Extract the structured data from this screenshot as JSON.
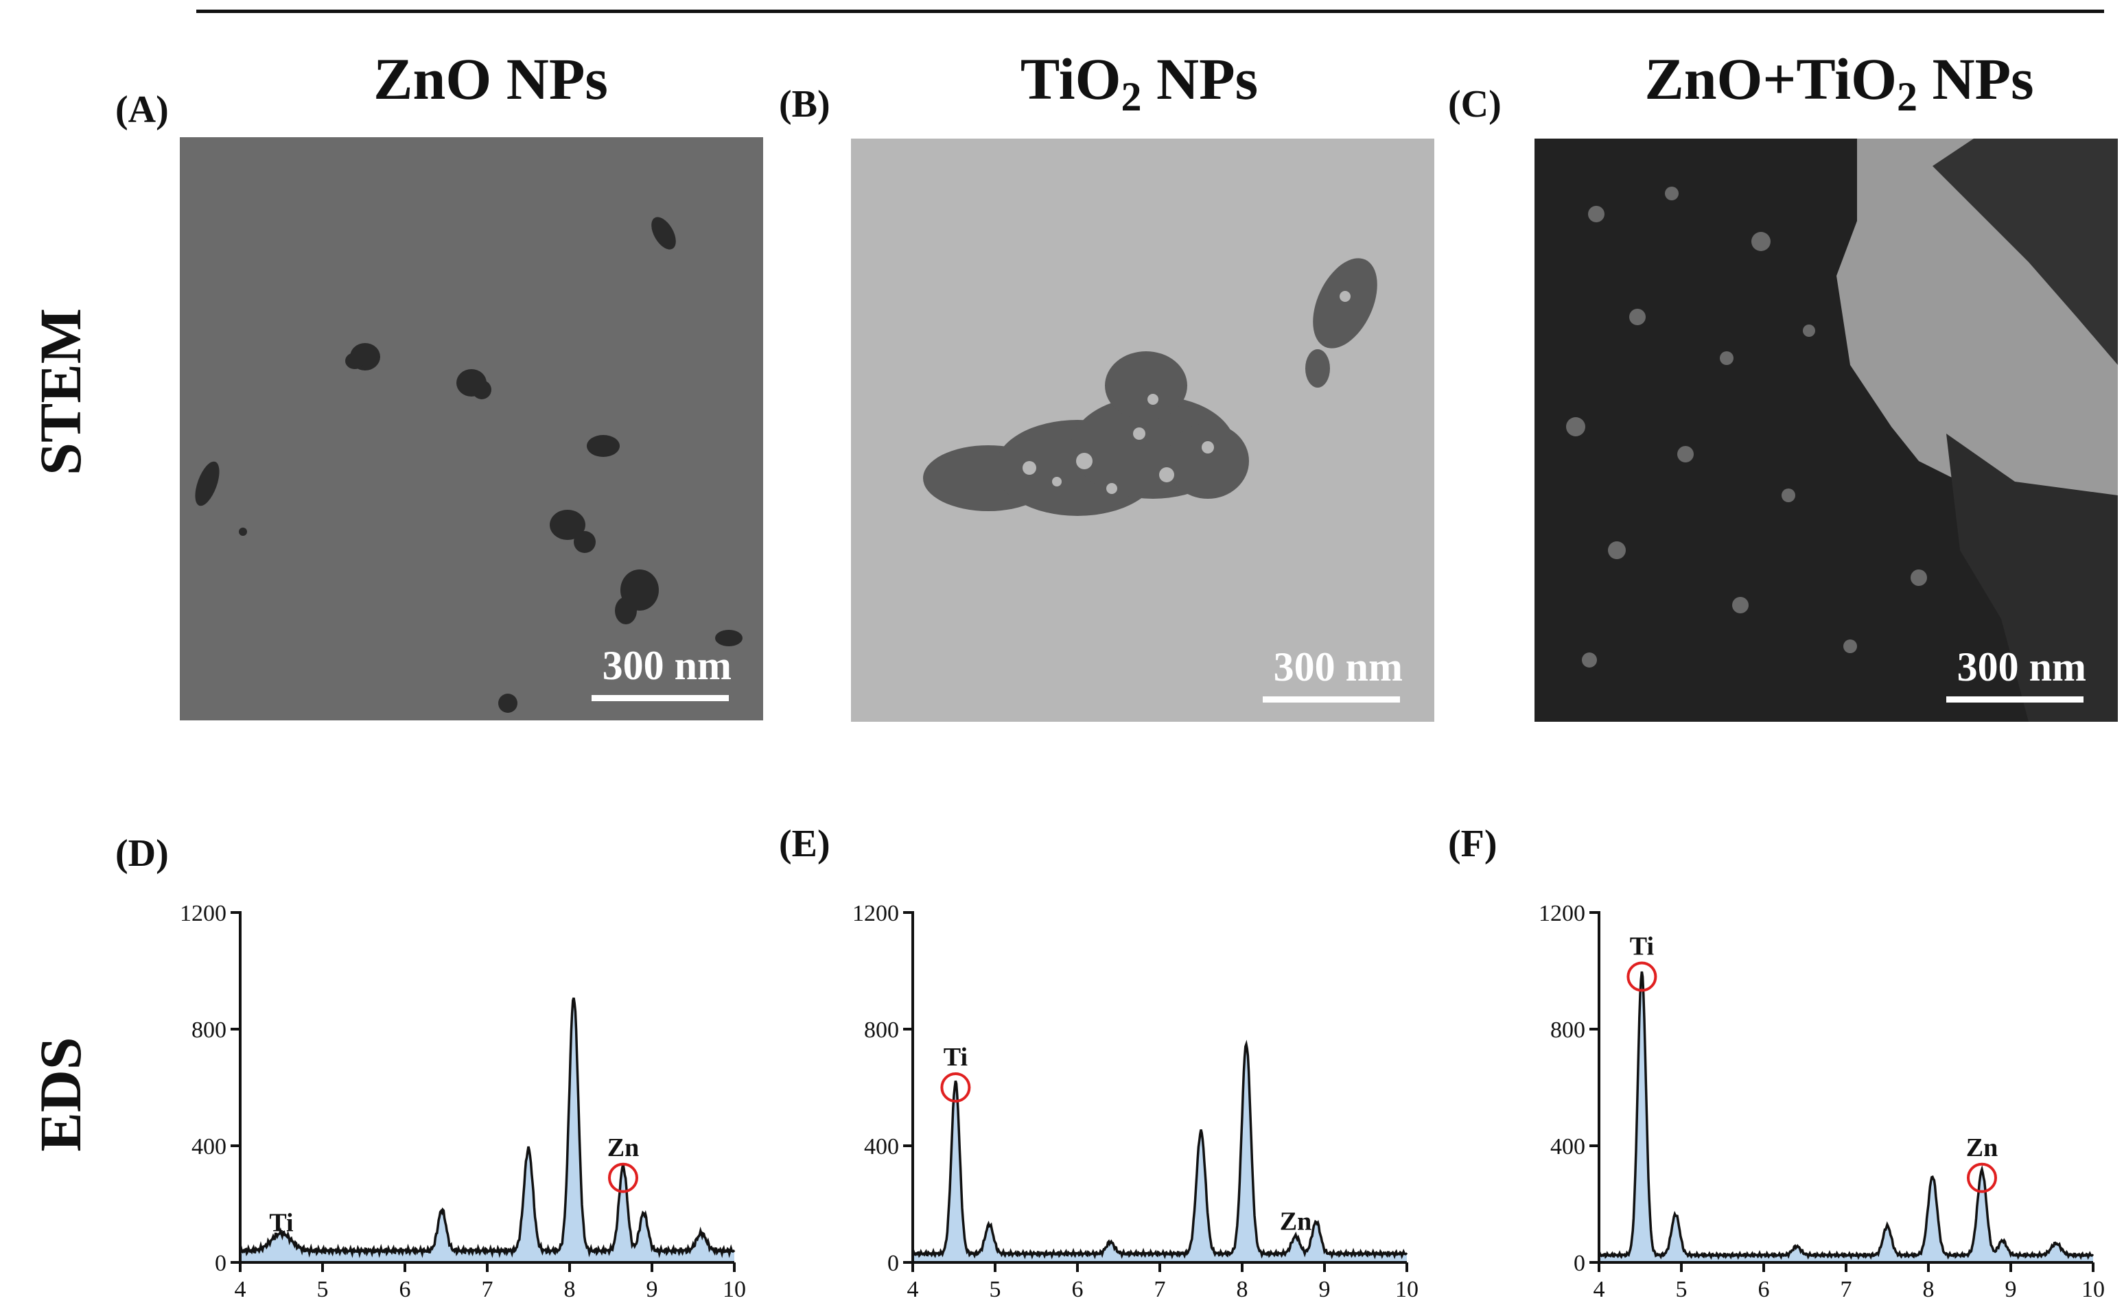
{
  "columns": [
    {
      "title": "ZnO NPs",
      "title_sub": ""
    },
    {
      "title": "TiO",
      "title_sub": "2",
      "title_suffix": " NPs"
    },
    {
      "title": "ZnO+TiO",
      "title_sub": "2",
      "title_suffix": " NPs"
    }
  ],
  "row_labels": {
    "stem": "STEM",
    "eds": "EDS"
  },
  "stem_panels": [
    {
      "label": "(A)",
      "scalebar": "300 nm",
      "background": "#6b6b6b"
    },
    {
      "label": "(B)",
      "scalebar": "300 nm",
      "background": "#b7b7b7"
    },
    {
      "label": "(C)",
      "scalebar": "300 nm",
      "background": "#9a9a9a"
    }
  ],
  "eds_panel_labels": [
    "(D)",
    "(E)",
    "(F)"
  ],
  "colors": {
    "fill": "#bcd6ee",
    "line": "#111111",
    "circle": "#e02020"
  },
  "chart_data": [
    {
      "type": "line",
      "panel": "(D)",
      "x_range": [
        4,
        10
      ],
      "ylim": [
        0,
        1200
      ],
      "xticks": [
        4,
        5,
        6,
        7,
        8,
        9,
        10
      ],
      "yticks": [
        0,
        400,
        800,
        1200
      ],
      "baseline": 40,
      "peaks": [
        {
          "x": 4.5,
          "y": 60,
          "w": 0.12
        },
        {
          "x": 6.45,
          "y": 140,
          "w": 0.05
        },
        {
          "x": 7.5,
          "y": 350,
          "w": 0.055
        },
        {
          "x": 8.05,
          "y": 870,
          "w": 0.055
        },
        {
          "x": 8.65,
          "y": 290,
          "w": 0.05
        },
        {
          "x": 8.9,
          "y": 130,
          "w": 0.05
        },
        {
          "x": 9.6,
          "y": 60,
          "w": 0.06
        }
      ],
      "annotations": [
        {
          "text": "Ti",
          "x": 4.5,
          "y": 55,
          "circle": false
        },
        {
          "text": "Zn",
          "x": 8.65,
          "y": 290,
          "circle": true
        }
      ]
    },
    {
      "type": "line",
      "panel": "(E)",
      "x_range": [
        4,
        10
      ],
      "ylim": [
        0,
        1200
      ],
      "xticks": [
        4,
        5,
        6,
        7,
        8,
        9,
        10
      ],
      "yticks": [
        0,
        400,
        800,
        1200
      ],
      "baseline": 30,
      "peaks": [
        {
          "x": 4.52,
          "y": 590,
          "w": 0.05
        },
        {
          "x": 4.93,
          "y": 100,
          "w": 0.05
        },
        {
          "x": 6.4,
          "y": 40,
          "w": 0.05
        },
        {
          "x": 7.5,
          "y": 420,
          "w": 0.055
        },
        {
          "x": 8.05,
          "y": 720,
          "w": 0.055
        },
        {
          "x": 8.65,
          "y": 60,
          "w": 0.05
        },
        {
          "x": 8.9,
          "y": 110,
          "w": 0.05
        }
      ],
      "annotations": [
        {
          "text": "Ti",
          "x": 4.52,
          "y": 600,
          "circle": true
        },
        {
          "text": "Zn",
          "x": 8.65,
          "y": 60,
          "circle": false
        }
      ]
    },
    {
      "type": "line",
      "panel": "(F)",
      "x_range": [
        4,
        10
      ],
      "ylim": [
        0,
        1200
      ],
      "xticks": [
        4,
        5,
        6,
        7,
        8,
        9,
        10
      ],
      "yticks": [
        0,
        400,
        800,
        1200
      ],
      "baseline": 25,
      "peaks": [
        {
          "x": 4.52,
          "y": 970,
          "w": 0.05
        },
        {
          "x": 4.93,
          "y": 140,
          "w": 0.05
        },
        {
          "x": 6.4,
          "y": 30,
          "w": 0.05
        },
        {
          "x": 7.5,
          "y": 100,
          "w": 0.05
        },
        {
          "x": 8.05,
          "y": 270,
          "w": 0.055
        },
        {
          "x": 8.65,
          "y": 290,
          "w": 0.055
        },
        {
          "x": 8.9,
          "y": 50,
          "w": 0.05
        },
        {
          "x": 9.55,
          "y": 40,
          "w": 0.06
        }
      ],
      "annotations": [
        {
          "text": "Ti",
          "x": 4.52,
          "y": 980,
          "circle": true
        },
        {
          "text": "Zn",
          "x": 8.65,
          "y": 290,
          "circle": true
        }
      ]
    }
  ]
}
